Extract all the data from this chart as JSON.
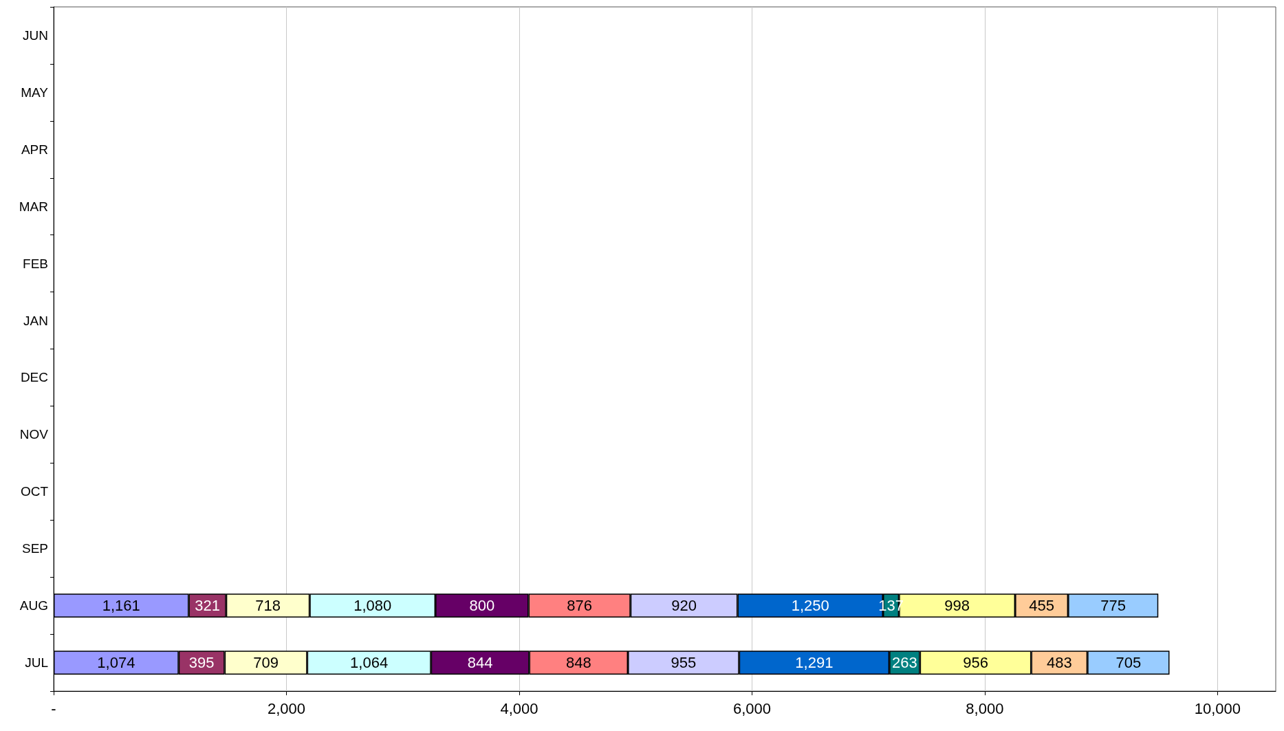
{
  "chart_data": {
    "type": "bar",
    "orientation": "horizontal",
    "stacked": true,
    "grid": "x",
    "categories": [
      "JUN",
      "MAY",
      "APR",
      "MAR",
      "FEB",
      "JAN",
      "DEC",
      "NOV",
      "OCT",
      "SEP",
      "AUG",
      "JUL"
    ],
    "xlim": [
      0,
      10500
    ],
    "xticks": [
      {
        "value": 0,
        "label": "-"
      },
      {
        "value": 2000,
        "label": "2,000"
      },
      {
        "value": 4000,
        "label": "4,000"
      },
      {
        "value": 6000,
        "label": "6,000"
      },
      {
        "value": 8000,
        "label": "8,000"
      },
      {
        "value": 10000,
        "label": "10,000"
      }
    ],
    "series": [
      {
        "color": "#9999ff",
        "values": [
          null,
          null,
          null,
          null,
          null,
          null,
          null,
          null,
          null,
          null,
          1161,
          1074
        ],
        "value_labels": [
          null,
          null,
          null,
          null,
          null,
          null,
          null,
          null,
          null,
          null,
          "1,161",
          "1,074"
        ]
      },
      {
        "color": "#993366",
        "values": [
          null,
          null,
          null,
          null,
          null,
          null,
          null,
          null,
          null,
          null,
          321,
          395
        ],
        "value_labels": [
          null,
          null,
          null,
          null,
          null,
          null,
          null,
          null,
          null,
          null,
          "321",
          "395"
        ]
      },
      {
        "color": "#ffffcc",
        "values": [
          null,
          null,
          null,
          null,
          null,
          null,
          null,
          null,
          null,
          null,
          718,
          709
        ],
        "value_labels": [
          null,
          null,
          null,
          null,
          null,
          null,
          null,
          null,
          null,
          null,
          "718",
          "709"
        ]
      },
      {
        "color": "#ccffff",
        "values": [
          null,
          null,
          null,
          null,
          null,
          null,
          null,
          null,
          null,
          null,
          1080,
          1064
        ],
        "value_labels": [
          null,
          null,
          null,
          null,
          null,
          null,
          null,
          null,
          null,
          null,
          "1,080",
          "1,064"
        ]
      },
      {
        "color": "#660066",
        "values": [
          null,
          null,
          null,
          null,
          null,
          null,
          null,
          null,
          null,
          null,
          800,
          844
        ],
        "value_labels": [
          null,
          null,
          null,
          null,
          null,
          null,
          null,
          null,
          null,
          null,
          "800",
          "844"
        ]
      },
      {
        "color": "#ff8080",
        "values": [
          null,
          null,
          null,
          null,
          null,
          null,
          null,
          null,
          null,
          null,
          876,
          848
        ],
        "value_labels": [
          null,
          null,
          null,
          null,
          null,
          null,
          null,
          null,
          null,
          null,
          "876",
          "848"
        ]
      },
      {
        "color": "#ccccff",
        "values": [
          null,
          null,
          null,
          null,
          null,
          null,
          null,
          null,
          null,
          null,
          920,
          955
        ],
        "value_labels": [
          null,
          null,
          null,
          null,
          null,
          null,
          null,
          null,
          null,
          null,
          "920",
          "955"
        ]
      },
      {
        "color": "#0066cc",
        "values": [
          null,
          null,
          null,
          null,
          null,
          null,
          null,
          null,
          null,
          null,
          1250,
          1291
        ],
        "value_labels": [
          null,
          null,
          null,
          null,
          null,
          null,
          null,
          null,
          null,
          null,
          "1,250",
          "1,291"
        ]
      },
      {
        "color": "#008080",
        "values": [
          null,
          null,
          null,
          null,
          null,
          null,
          null,
          null,
          null,
          null,
          137,
          263
        ],
        "value_labels": [
          null,
          null,
          null,
          null,
          null,
          null,
          null,
          null,
          null,
          null,
          "137",
          "263"
        ]
      },
      {
        "color": "#ffff99",
        "values": [
          null,
          null,
          null,
          null,
          null,
          null,
          null,
          null,
          null,
          null,
          998,
          956
        ],
        "value_labels": [
          null,
          null,
          null,
          null,
          null,
          null,
          null,
          null,
          null,
          null,
          "998",
          "956"
        ]
      },
      {
        "color": "#ffcc99",
        "values": [
          null,
          null,
          null,
          null,
          null,
          null,
          null,
          null,
          null,
          null,
          455,
          483
        ],
        "value_labels": [
          null,
          null,
          null,
          null,
          null,
          null,
          null,
          null,
          null,
          null,
          "455",
          "483"
        ]
      },
      {
        "color": "#99ccff",
        "values": [
          null,
          null,
          null,
          null,
          null,
          null,
          null,
          null,
          null,
          null,
          775,
          705
        ],
        "value_labels": [
          null,
          null,
          null,
          null,
          null,
          null,
          null,
          null,
          null,
          null,
          "775",
          "705"
        ]
      }
    ]
  }
}
